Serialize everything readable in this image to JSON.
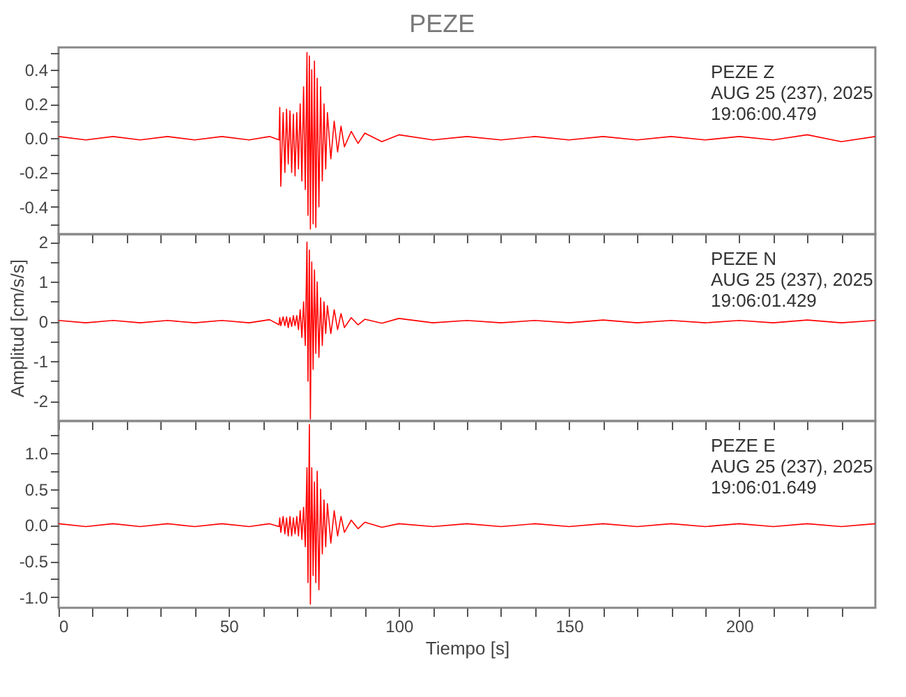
{
  "chart_data": [
    {
      "type": "line",
      "title": "PEZE",
      "annotations": [
        "PEZE   Z",
        "AUG 25 (237), 2025",
        "19:06:00.479"
      ],
      "grid": false,
      "tick_labels": "y",
      "x": [
        0,
        8,
        16,
        24,
        32,
        40,
        48,
        56,
        62,
        64.8,
        65,
        65.3,
        66,
        66.5,
        67,
        67.5,
        68,
        68.5,
        69,
        69.5,
        70,
        70.5,
        71,
        71.5,
        72,
        72.5,
        73,
        73.3,
        73.7,
        74,
        74.4,
        74.8,
        75.2,
        75.6,
        76,
        76.5,
        77,
        77.5,
        78,
        78.5,
        79,
        80,
        81,
        82,
        83,
        84,
        86,
        88,
        90,
        95,
        100,
        110,
        120,
        130,
        140,
        150,
        160,
        170,
        180,
        190,
        200,
        210,
        220,
        230,
        240
      ],
      "series": [
        {
          "color": "#ff0000",
          "values": [
            0.01,
            -0.01,
            0.01,
            -0.01,
            0.01,
            -0.01,
            0.01,
            -0.01,
            0.01,
            -0.01,
            0.18,
            -0.28,
            0.15,
            -0.2,
            0.17,
            -0.15,
            0.16,
            -0.2,
            0.14,
            -0.22,
            0.15,
            -0.18,
            0.2,
            -0.25,
            0.3,
            -0.3,
            0.5,
            -0.45,
            0.48,
            -0.53,
            0.4,
            -0.5,
            0.45,
            -0.52,
            0.35,
            -0.4,
            0.3,
            -0.25,
            0.2,
            -0.18,
            0.15,
            -0.12,
            0.1,
            -0.08,
            0.07,
            -0.05,
            0.04,
            -0.03,
            0.03,
            -0.02,
            0.02,
            -0.01,
            0.01,
            -0.01,
            0.01,
            -0.01,
            0.01,
            -0.01,
            0.01,
            -0.01,
            0.01,
            -0.01,
            0.02,
            -0.02,
            0.01
          ]
        }
      ],
      "xlim": [
        0,
        240
      ],
      "xticks": [
        0,
        {
          "value": 10,
          "label": null
        },
        {
          "value": 20,
          "label": null
        },
        {
          "value": 30,
          "label": null
        },
        {
          "value": 40,
          "label": null
        },
        50,
        {
          "value": 60,
          "label": null
        },
        {
          "value": 70,
          "label": null
        },
        {
          "value": 80,
          "label": null
        },
        {
          "value": 90,
          "label": null
        },
        100,
        {
          "value": 110,
          "label": null
        },
        {
          "value": 120,
          "label": null
        },
        {
          "value": 130,
          "label": null
        },
        {
          "value": 140,
          "label": null
        },
        150,
        {
          "value": 160,
          "label": null
        },
        {
          "value": 170,
          "label": null
        },
        {
          "value": 180,
          "label": null
        },
        {
          "value": 190,
          "label": null
        },
        200,
        {
          "value": 210,
          "label": null
        },
        {
          "value": 220,
          "label": null
        },
        {
          "value": 230,
          "label": null
        }
      ],
      "ylim": [
        -0.56,
        0.53
      ],
      "yticks": [
        {
          "value": -0.5,
          "label": null
        },
        -0.4,
        {
          "value": -0.3,
          "label": null
        },
        -0.2,
        {
          "value": -0.1,
          "label": null
        },
        {
          "value": 0,
          "label": "0.0"
        },
        {
          "value": 0.1,
          "label": null
        },
        0.2,
        {
          "value": 0.3,
          "label": null
        },
        0.4,
        {
          "value": 0.5,
          "label": null
        }
      ]
    },
    {
      "type": "line",
      "ylabel": "Amplitud [cm/s/s]",
      "annotations": [
        "PEZE   N",
        "AUG 25 (237), 2025",
        "19:06:01.429"
      ],
      "grid": false,
      "tick_labels": "y",
      "x": [
        0,
        8,
        16,
        24,
        32,
        40,
        48,
        56,
        62,
        64.8,
        65,
        65.3,
        66,
        66.5,
        67,
        67.5,
        68,
        68.5,
        69,
        69.5,
        70,
        70.5,
        71,
        71.5,
        72,
        72.5,
        73,
        73.3,
        73.7,
        74,
        74.4,
        74.8,
        75.2,
        75.6,
        76,
        76.5,
        77,
        77.5,
        78,
        78.5,
        79,
        80,
        81,
        82,
        83,
        84,
        86,
        88,
        90,
        95,
        100,
        110,
        120,
        130,
        140,
        150,
        160,
        170,
        180,
        190,
        200,
        210,
        220,
        230,
        240
      ],
      "series": [
        {
          "color": "#ff0000",
          "values": [
            0.03,
            -0.03,
            0.03,
            -0.03,
            0.03,
            -0.03,
            0.03,
            -0.03,
            0.05,
            -0.08,
            0.1,
            -0.1,
            0.12,
            -0.1,
            0.12,
            -0.15,
            0.1,
            -0.12,
            0.15,
            -0.1,
            0.15,
            -0.2,
            0.3,
            -0.4,
            0.5,
            -0.6,
            2.0,
            -1.5,
            1.8,
            -2.45,
            1.5,
            -1.2,
            1.3,
            -0.8,
            1.0,
            -0.9,
            0.6,
            -0.6,
            0.5,
            -0.3,
            0.4,
            -0.3,
            0.3,
            -0.2,
            0.2,
            -0.15,
            0.1,
            -0.08,
            0.06,
            -0.04,
            0.08,
            -0.03,
            0.03,
            -0.03,
            0.03,
            -0.03,
            0.04,
            -0.03,
            0.03,
            -0.03,
            0.03,
            -0.03,
            0.04,
            -0.03,
            0.03
          ]
        }
      ],
      "xlim": [
        0,
        240
      ],
      "xticks": [
        0,
        {
          "value": 10,
          "label": null
        },
        {
          "value": 20,
          "label": null
        },
        {
          "value": 30,
          "label": null
        },
        {
          "value": 40,
          "label": null
        },
        50,
        {
          "value": 60,
          "label": null
        },
        {
          "value": 70,
          "label": null
        },
        {
          "value": 80,
          "label": null
        },
        {
          "value": 90,
          "label": null
        },
        100,
        {
          "value": 110,
          "label": null
        },
        {
          "value": 120,
          "label": null
        },
        {
          "value": 130,
          "label": null
        },
        {
          "value": 140,
          "label": null
        },
        150,
        {
          "value": 160,
          "label": null
        },
        {
          "value": 170,
          "label": null
        },
        {
          "value": 180,
          "label": null
        },
        {
          "value": 190,
          "label": null
        },
        200,
        {
          "value": 210,
          "label": null
        },
        {
          "value": 220,
          "label": null
        },
        {
          "value": 230,
          "label": null
        }
      ],
      "ylim": [
        -2.5,
        2.2
      ],
      "yticks": [
        -2,
        {
          "value": -1.5,
          "label": null
        },
        -1,
        {
          "value": -0.5,
          "label": null
        },
        0,
        {
          "value": 0.5,
          "label": null
        },
        1,
        {
          "value": 1.5,
          "label": null
        },
        2
      ]
    },
    {
      "type": "line",
      "xlabel": "Tiempo [s]",
      "annotations": [
        "PEZE   E",
        "AUG 25 (237), 2025",
        "19:06:01.649"
      ],
      "grid": false,
      "x": [
        0,
        8,
        16,
        24,
        32,
        40,
        48,
        56,
        62,
        64.8,
        65,
        65.3,
        66,
        66.5,
        67,
        67.5,
        68,
        68.5,
        69,
        69.5,
        70,
        70.5,
        71,
        71.5,
        72,
        72.5,
        73,
        73.3,
        73.7,
        74,
        74.4,
        74.8,
        75.2,
        75.6,
        76,
        76.5,
        77,
        77.5,
        78,
        78.5,
        79,
        80,
        81,
        82,
        83,
        84,
        86,
        88,
        90,
        95,
        100,
        110,
        120,
        130,
        140,
        150,
        160,
        170,
        180,
        190,
        200,
        210,
        220,
        230,
        240
      ],
      "series": [
        {
          "color": "#ff0000",
          "values": [
            0.02,
            -0.02,
            0.02,
            -0.02,
            0.02,
            -0.02,
            0.02,
            -0.02,
            0.02,
            -0.02,
            0.1,
            -0.1,
            0.12,
            -0.12,
            0.1,
            -0.15,
            0.12,
            -0.15,
            0.1,
            -0.12,
            0.12,
            -0.15,
            0.2,
            -0.2,
            0.25,
            -0.3,
            0.8,
            -0.8,
            1.4,
            -1.1,
            0.8,
            -0.7,
            0.6,
            -0.8,
            0.75,
            -0.9,
            0.5,
            -0.4,
            0.35,
            -0.3,
            0.3,
            -0.25,
            0.2,
            -0.15,
            0.12,
            -0.1,
            0.07,
            -0.05,
            0.04,
            -0.03,
            0.02,
            -0.02,
            0.02,
            -0.02,
            0.02,
            -0.02,
            0.02,
            -0.02,
            0.02,
            -0.02,
            0.02,
            -0.02,
            0.02,
            -0.02,
            0.02
          ]
        }
      ],
      "xlim": [
        0,
        240
      ],
      "xticks": [
        0,
        {
          "value": 10,
          "label": null
        },
        {
          "value": 20,
          "label": null
        },
        {
          "value": 30,
          "label": null
        },
        {
          "value": 40,
          "label": null
        },
        50,
        {
          "value": 60,
          "label": null
        },
        {
          "value": 70,
          "label": null
        },
        {
          "value": 80,
          "label": null
        },
        {
          "value": 90,
          "label": null
        },
        100,
        {
          "value": 110,
          "label": null
        },
        {
          "value": 120,
          "label": null
        },
        {
          "value": 130,
          "label": null
        },
        {
          "value": 140,
          "label": null
        },
        150,
        {
          "value": 160,
          "label": null
        },
        {
          "value": 170,
          "label": null
        },
        {
          "value": 180,
          "label": null
        },
        {
          "value": 190,
          "label": null
        },
        200,
        {
          "value": 210,
          "label": null
        },
        {
          "value": 220,
          "label": null
        },
        {
          "value": 230,
          "label": null
        }
      ],
      "ylim": [
        -1.15,
        1.45
      ],
      "yticks": [
        {
          "value": -1,
          "label": "-1.0"
        },
        {
          "value": -0.75,
          "label": null
        },
        -0.5,
        {
          "value": -0.25,
          "label": null
        },
        {
          "value": 0,
          "label": "0.0"
        },
        {
          "value": 0.25,
          "label": null
        },
        0.5,
        {
          "value": 0.75,
          "label": null
        },
        {
          "value": 1,
          "label": "1.0"
        },
        {
          "value": 1.25,
          "label": null
        }
      ]
    }
  ]
}
